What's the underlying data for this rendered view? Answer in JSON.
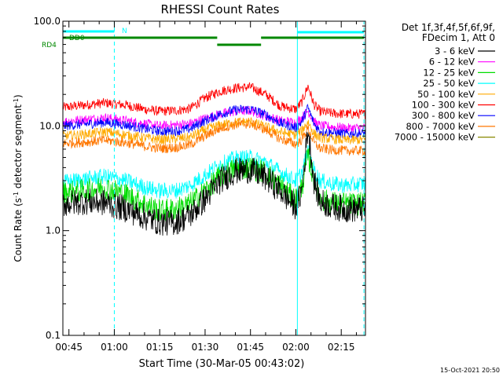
{
  "chart_data": {
    "type": "line",
    "title": "RHESSI Count Rates",
    "xlabel": "Start Time (30-Mar-05 00:43:02)",
    "ylabel": "Count Rate (s⁻¹ detector segment⁻¹)",
    "ylabel_parts": {
      "a": "Count Rate (s",
      "b": "-1",
      "c": " detector segment",
      "d": "-1",
      "e": ")"
    },
    "yscale": "log",
    "xlim_minutes": [
      43,
      143
    ],
    "ylim": [
      0.1,
      100.0
    ],
    "x_ticks": [
      {
        "label": "00:45",
        "minute": 45
      },
      {
        "label": "01:00",
        "minute": 60
      },
      {
        "label": "01:15",
        "minute": 75
      },
      {
        "label": "01:30",
        "minute": 90
      },
      {
        "label": "01:45",
        "minute": 105
      },
      {
        "label": "02:00",
        "minute": 120
      },
      {
        "label": "02:15",
        "minute": 135
      }
    ],
    "y_ticks": [
      {
        "label": "100.0",
        "value": 100.0
      },
      {
        "label": "10.0",
        "value": 10.0
      },
      {
        "label": "1.0",
        "value": 1.0
      },
      {
        "label": "0.1",
        "value": 0.1
      }
    ],
    "legend_header": [
      "Det 1f,3f,4f,5f,6f,9f,",
      "FDecim 1, Att 0"
    ],
    "legend_position": "top-right",
    "series": [
      {
        "name": "3 - 6 keV",
        "color": "#000000",
        "points": [
          [
            43,
            1.8
          ],
          [
            50,
            1.9
          ],
          [
            57,
            1.85
          ],
          [
            64,
            1.6
          ],
          [
            70,
            1.35
          ],
          [
            75,
            1.2
          ],
          [
            80,
            1.2
          ],
          [
            85,
            1.4
          ],
          [
            90,
            2.0
          ],
          [
            95,
            3.0
          ],
          [
            100,
            3.7
          ],
          [
            105,
            3.8
          ],
          [
            110,
            3.2
          ],
          [
            115,
            2.4
          ],
          [
            118,
            1.9
          ],
          [
            120,
            1.7
          ],
          [
            122,
            2.4
          ],
          [
            124,
            9.5
          ],
          [
            126,
            3.0
          ],
          [
            128,
            1.9
          ],
          [
            132,
            1.7
          ],
          [
            137,
            1.6
          ],
          [
            142,
            1.6
          ]
        ]
      },
      {
        "name": "6 - 12 keV",
        "color": "#ff00ff",
        "points": [
          [
            43,
            11.0
          ],
          [
            50,
            11.5
          ],
          [
            57,
            12.0
          ],
          [
            64,
            11.2
          ],
          [
            70,
            10.5
          ],
          [
            75,
            10.0
          ],
          [
            80,
            10.2
          ],
          [
            85,
            10.5
          ],
          [
            90,
            11.8
          ],
          [
            95,
            13.0
          ],
          [
            100,
            13.8
          ],
          [
            105,
            14.0
          ],
          [
            110,
            12.5
          ],
          [
            115,
            11.2
          ],
          [
            120,
            10.8
          ],
          [
            122,
            12.0
          ],
          [
            124,
            14.0
          ],
          [
            126,
            11.0
          ],
          [
            128,
            10.0
          ],
          [
            132,
            9.8
          ],
          [
            137,
            9.5
          ],
          [
            142,
            9.6
          ]
        ]
      },
      {
        "name": "12 - 25 keV",
        "color": "#00dd00",
        "points": [
          [
            43,
            2.3
          ],
          [
            50,
            2.4
          ],
          [
            57,
            2.6
          ],
          [
            64,
            2.2
          ],
          [
            70,
            1.8
          ],
          [
            75,
            1.55
          ],
          [
            80,
            1.6
          ],
          [
            85,
            1.8
          ],
          [
            90,
            2.4
          ],
          [
            95,
            3.3
          ],
          [
            100,
            3.9
          ],
          [
            105,
            4.0
          ],
          [
            110,
            3.6
          ],
          [
            115,
            2.7
          ],
          [
            118,
            2.2
          ],
          [
            120,
            2.0
          ],
          [
            122,
            2.6
          ],
          [
            124,
            5.2
          ],
          [
            126,
            3.0
          ],
          [
            128,
            2.0
          ],
          [
            132,
            1.85
          ],
          [
            137,
            1.8
          ],
          [
            142,
            1.8
          ]
        ]
      },
      {
        "name": "25 - 50 keV",
        "color": "#00ffff",
        "points": [
          [
            43,
            2.9
          ],
          [
            50,
            3.1
          ],
          [
            57,
            3.3
          ],
          [
            64,
            3.0
          ],
          [
            70,
            2.6
          ],
          [
            75,
            2.4
          ],
          [
            80,
            2.4
          ],
          [
            85,
            2.7
          ],
          [
            90,
            3.4
          ],
          [
            95,
            4.3
          ],
          [
            100,
            4.9
          ],
          [
            105,
            5.0
          ],
          [
            110,
            4.5
          ],
          [
            115,
            3.6
          ],
          [
            120,
            3.0
          ],
          [
            122,
            3.6
          ],
          [
            124,
            5.8
          ],
          [
            126,
            3.8
          ],
          [
            128,
            3.0
          ],
          [
            132,
            2.8
          ],
          [
            137,
            2.7
          ],
          [
            142,
            2.8
          ]
        ]
      },
      {
        "name": "50 - 100 keV",
        "color": "#ffaa00",
        "points": [
          [
            43,
            8.0
          ],
          [
            50,
            8.3
          ],
          [
            57,
            8.8
          ],
          [
            64,
            8.2
          ],
          [
            70,
            7.7
          ],
          [
            75,
            7.4
          ],
          [
            80,
            7.5
          ],
          [
            85,
            7.8
          ],
          [
            90,
            9.2
          ],
          [
            95,
            10.2
          ],
          [
            100,
            10.8
          ],
          [
            105,
            11.0
          ],
          [
            110,
            9.8
          ],
          [
            115,
            8.7
          ],
          [
            120,
            8.2
          ],
          [
            122,
            9.0
          ],
          [
            124,
            11.0
          ],
          [
            126,
            8.4
          ],
          [
            128,
            7.7
          ],
          [
            132,
            7.5
          ],
          [
            137,
            7.3
          ],
          [
            142,
            7.4
          ]
        ]
      },
      {
        "name": "100 - 300 keV",
        "color": "#ff0000",
        "points": [
          [
            43,
            15.0
          ],
          [
            50,
            15.8
          ],
          [
            57,
            16.6
          ],
          [
            64,
            15.8
          ],
          [
            70,
            14.4
          ],
          [
            75,
            13.8
          ],
          [
            80,
            14.0
          ],
          [
            85,
            14.6
          ],
          [
            90,
            18.5
          ],
          [
            95,
            21.5
          ],
          [
            100,
            23.0
          ],
          [
            105,
            23.5
          ],
          [
            110,
            20.0
          ],
          [
            115,
            15.4
          ],
          [
            120,
            14.4
          ],
          [
            122,
            17.0
          ],
          [
            124,
            24.0
          ],
          [
            126,
            16.0
          ],
          [
            128,
            13.8
          ],
          [
            132,
            13.2
          ],
          [
            137,
            13.0
          ],
          [
            142,
            13.0
          ]
        ]
      },
      {
        "name": "300 - 800 keV",
        "color": "#0000ff",
        "points": [
          [
            43,
            10.0
          ],
          [
            50,
            10.4
          ],
          [
            57,
            10.8
          ],
          [
            64,
            10.2
          ],
          [
            70,
            9.4
          ],
          [
            75,
            8.9
          ],
          [
            80,
            8.9
          ],
          [
            85,
            9.4
          ],
          [
            90,
            11.2
          ],
          [
            95,
            13.0
          ],
          [
            100,
            14.2
          ],
          [
            105,
            14.5
          ],
          [
            110,
            12.8
          ],
          [
            115,
            10.6
          ],
          [
            120,
            9.6
          ],
          [
            122,
            11.0
          ],
          [
            124,
            15.0
          ],
          [
            126,
            10.5
          ],
          [
            128,
            8.9
          ],
          [
            132,
            8.6
          ],
          [
            137,
            8.4
          ],
          [
            142,
            8.5
          ]
        ]
      },
      {
        "name": "800 - 7000 keV",
        "color": "#ff7700",
        "points": [
          [
            43,
            6.8
          ],
          [
            50,
            7.0
          ],
          [
            57,
            7.3
          ],
          [
            64,
            6.9
          ],
          [
            70,
            6.4
          ],
          [
            75,
            6.1
          ],
          [
            80,
            6.2
          ],
          [
            85,
            6.6
          ],
          [
            90,
            8.0
          ],
          [
            95,
            9.5
          ],
          [
            100,
            10.3
          ],
          [
            105,
            10.5
          ],
          [
            110,
            9.2
          ],
          [
            115,
            7.5
          ],
          [
            120,
            6.7
          ],
          [
            122,
            7.4
          ],
          [
            124,
            9.5
          ],
          [
            126,
            6.9
          ],
          [
            128,
            6.1
          ],
          [
            132,
            5.9
          ],
          [
            137,
            5.8
          ],
          [
            142,
            5.8
          ]
        ]
      },
      {
        "name": "7000 - 15000 keV",
        "color": "#888800",
        "points": []
      }
    ],
    "attenuator_state_labels": [
      "N",
      "DD0",
      "RD4"
    ],
    "colors": {
      "cyan": "#00ffff",
      "green": "#008800"
    }
  },
  "footer": {
    "timestamp": "15-Oct-2021 20:50"
  }
}
